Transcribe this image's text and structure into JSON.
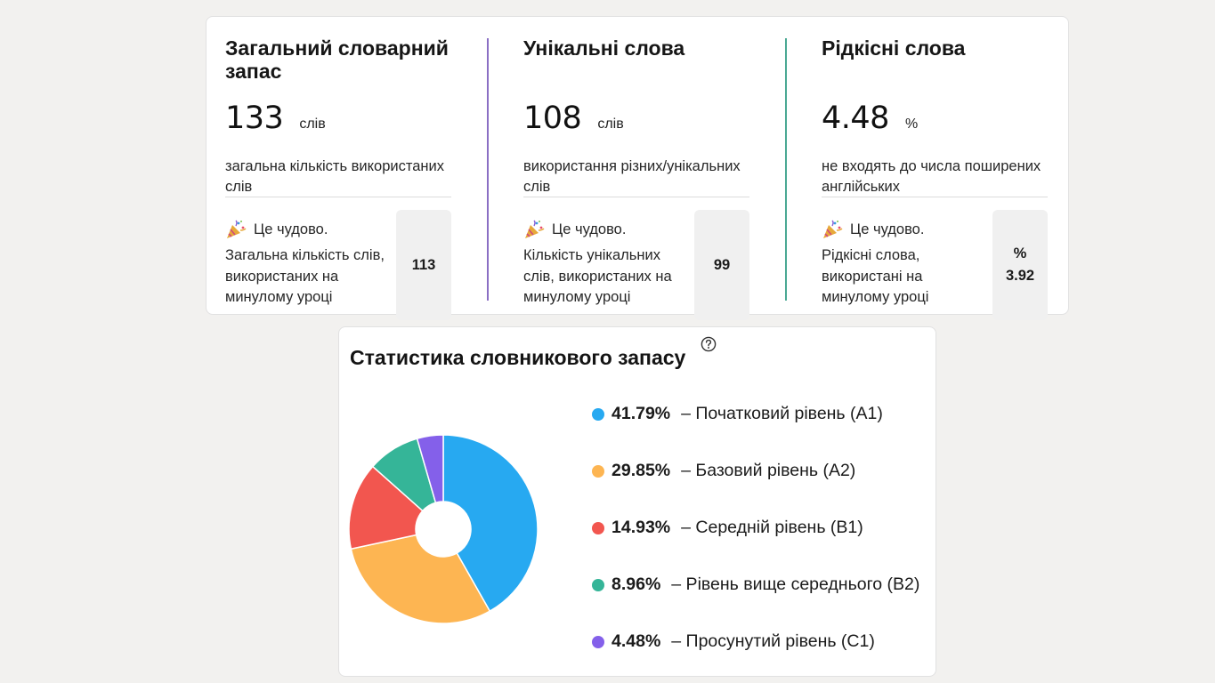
{
  "stats": {
    "total": {
      "title": "Загальний словарний запас",
      "value": "133",
      "unit": "слів",
      "desc": "загальна кількість використаних слів",
      "note_head": "Це чудово.",
      "note_text": "Загальна кількість слів, використаних на минулому уроці",
      "prev_value": "113",
      "prev_unit": ""
    },
    "unique": {
      "title": "Унікальні слова",
      "value": "108",
      "unit": "слів",
      "desc": "використання різних/унікальних слів",
      "note_head": "Це чудово.",
      "note_text": "Кількість унікальних слів, використаних на минулому уроці",
      "prev_value": "99",
      "prev_unit": ""
    },
    "rare": {
      "title": "Рідкісні слова",
      "value": "4.48",
      "unit": "%",
      "desc": "не входять до числа поширених англійських",
      "note_head": "Це чудово.",
      "note_text": "Рідкісні слова, використані на минулому уроці",
      "prev_value": "3.92",
      "prev_unit": "%"
    }
  },
  "divider_colors": [
    "#8a6fc4",
    "#4aa893"
  ],
  "note_icon": "party-popper-icon",
  "vocab": {
    "title": "Статистика словникового запасу",
    "help_icon": "question-circle-icon"
  },
  "chart_data": {
    "type": "pie",
    "donut": true,
    "categories": [
      "Початковий рівень (A1)",
      "Базовий рівень (A2)",
      "Середній рівень (B1)",
      "Рівень вище середнього (B2)",
      "Просунутий рівень (C1)"
    ],
    "values": [
      41.79,
      29.85,
      14.93,
      8.96,
      4.48
    ],
    "labels": [
      "41.79%",
      "29.85%",
      "14.93%",
      "8.96%",
      "4.48%"
    ],
    "colors": [
      "#27a9f1",
      "#fdb552",
      "#f2564f",
      "#35b598",
      "#8460ea"
    ],
    "legend": "right"
  }
}
